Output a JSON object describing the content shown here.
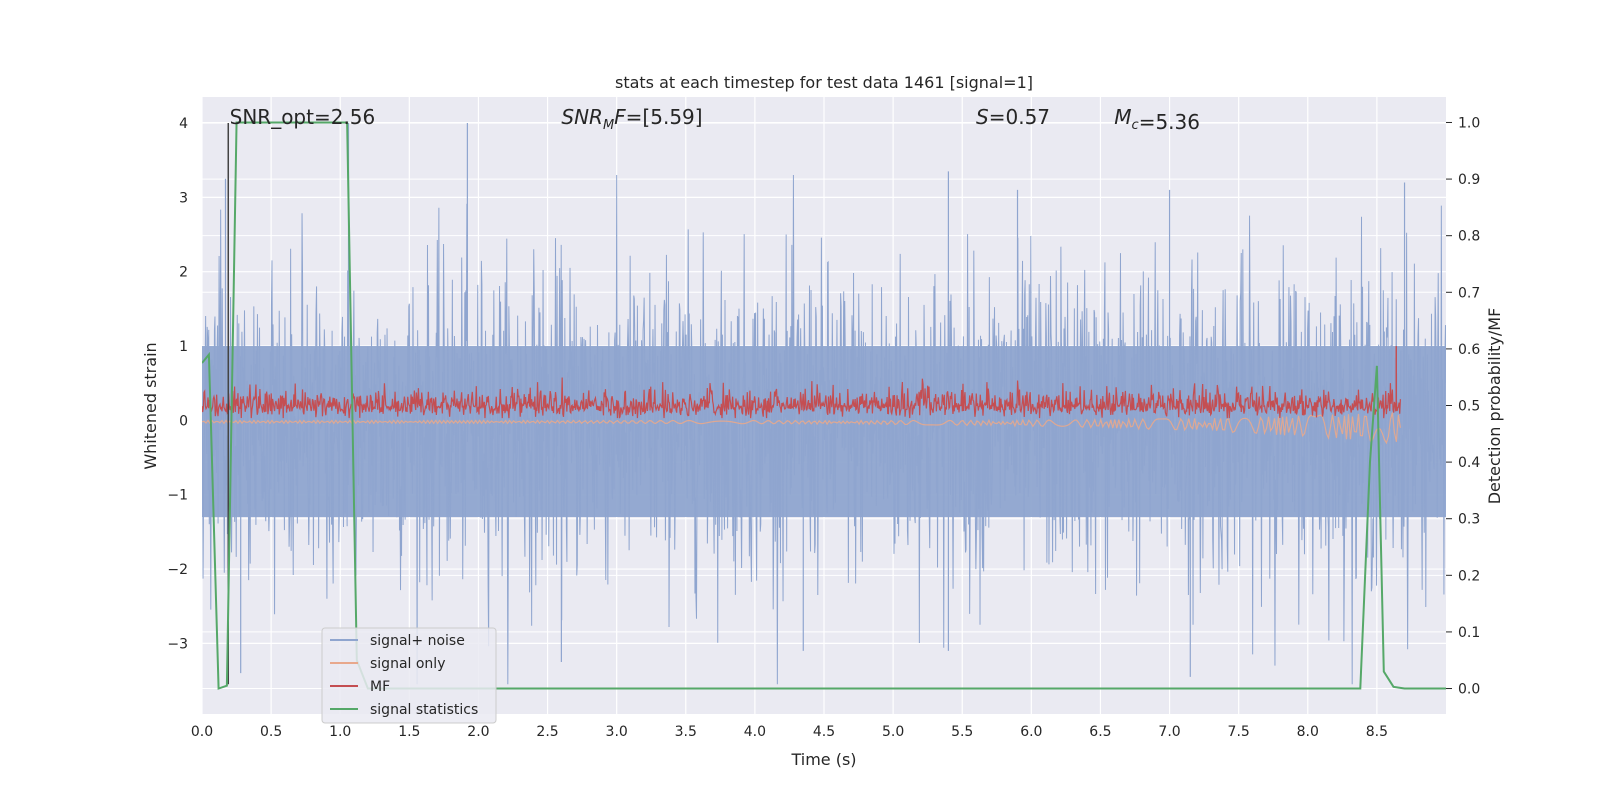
{
  "chart_data": {
    "type": "line",
    "title": "stats at each timestep for test data 1461 [signal=1]",
    "xlabel": "Time (s)",
    "ylabel": "Whitened strain",
    "y2label": "Detection probability/MF",
    "xlim": [
      0.0,
      9.0
    ],
    "ylim": [
      -3.95,
      4.35
    ],
    "y2lim": [
      -0.045,
      1.045
    ],
    "xticks": [
      0.0,
      0.5,
      1.0,
      1.5,
      2.0,
      2.5,
      3.0,
      3.5,
      4.0,
      4.5,
      5.0,
      5.5,
      6.0,
      6.5,
      7.0,
      7.5,
      8.0,
      8.5
    ],
    "xtick_labels": [
      "0.0",
      "0.5",
      "1.0",
      "1.5",
      "2.0",
      "2.5",
      "3.0",
      "3.5",
      "4.0",
      "4.5",
      "5.0",
      "5.5",
      "6.0",
      "6.5",
      "7.0",
      "7.5",
      "8.0",
      "8.5"
    ],
    "yticks": [
      -3,
      -2,
      -1,
      0,
      1,
      2,
      3,
      4
    ],
    "ytick_labels": [
      "−3",
      "−2",
      "−1",
      "0",
      "1",
      "2",
      "3",
      "4"
    ],
    "y2ticks": [
      0.0,
      0.1,
      0.2,
      0.3,
      0.4,
      0.5,
      0.6,
      0.7,
      0.8,
      0.9,
      1.0
    ],
    "y2tick_labels": [
      "0.0",
      "0.1",
      "0.2",
      "0.3",
      "0.4",
      "0.5",
      "0.6",
      "0.7",
      "0.8",
      "0.9",
      "1.0"
    ],
    "grid": true,
    "legend_position": "lower-left",
    "annotations": [
      {
        "id": "snr-opt",
        "x": 0.2,
        "text": "SNR_opt=2.56"
      },
      {
        "id": "snr-mf",
        "x": 2.6,
        "text": "SNR",
        "sub": "M",
        "rest": "F=[5.59]"
      },
      {
        "id": "s-value",
        "x": 5.6,
        "text": "S",
        "rest": "=0.57"
      },
      {
        "id": "mc-value",
        "x": 6.6,
        "text": "M",
        "sub": "c",
        "rest": "=5.36"
      }
    ],
    "series": [
      {
        "name": "signal+ noise",
        "color": "#8fa5cf",
        "axis": "left",
        "kind": "noise",
        "band": [
          -1.3,
          1.0
        ],
        "spike_max": 4.0,
        "spike_min": -3.55
      },
      {
        "name": "signal only",
        "color": "#e8a88c",
        "axis": "left",
        "kind": "chirp",
        "start": 0.0,
        "end": 8.67
      },
      {
        "name": "MF",
        "color": "#c44e52",
        "axis": "left",
        "kind": "mf",
        "center": 0.2,
        "band": [
          0.03,
          0.6
        ],
        "peak_x": 8.64,
        "peak_y": 1.0
      },
      {
        "name": "signal statistics",
        "color": "#55a868",
        "axis": "right",
        "kind": "line",
        "x": [
          0.0,
          0.05,
          0.12,
          0.18,
          0.25,
          0.3,
          1.0,
          1.05,
          1.12,
          1.2,
          8.38,
          8.45,
          8.5,
          8.55,
          8.62,
          8.7,
          9.0
        ],
        "y": [
          0.575,
          0.59,
          0.0,
          0.005,
          1.0,
          1.0,
          1.0,
          1.0,
          0.05,
          0.0,
          0.0,
          0.4,
          0.57,
          0.03,
          0.003,
          0.0,
          0.0
        ]
      },
      {
        "name": "",
        "color": "#444444",
        "axis": "left",
        "kind": "vline",
        "x": 0.19,
        "y": [
          -3.55,
          4.0
        ]
      }
    ]
  }
}
